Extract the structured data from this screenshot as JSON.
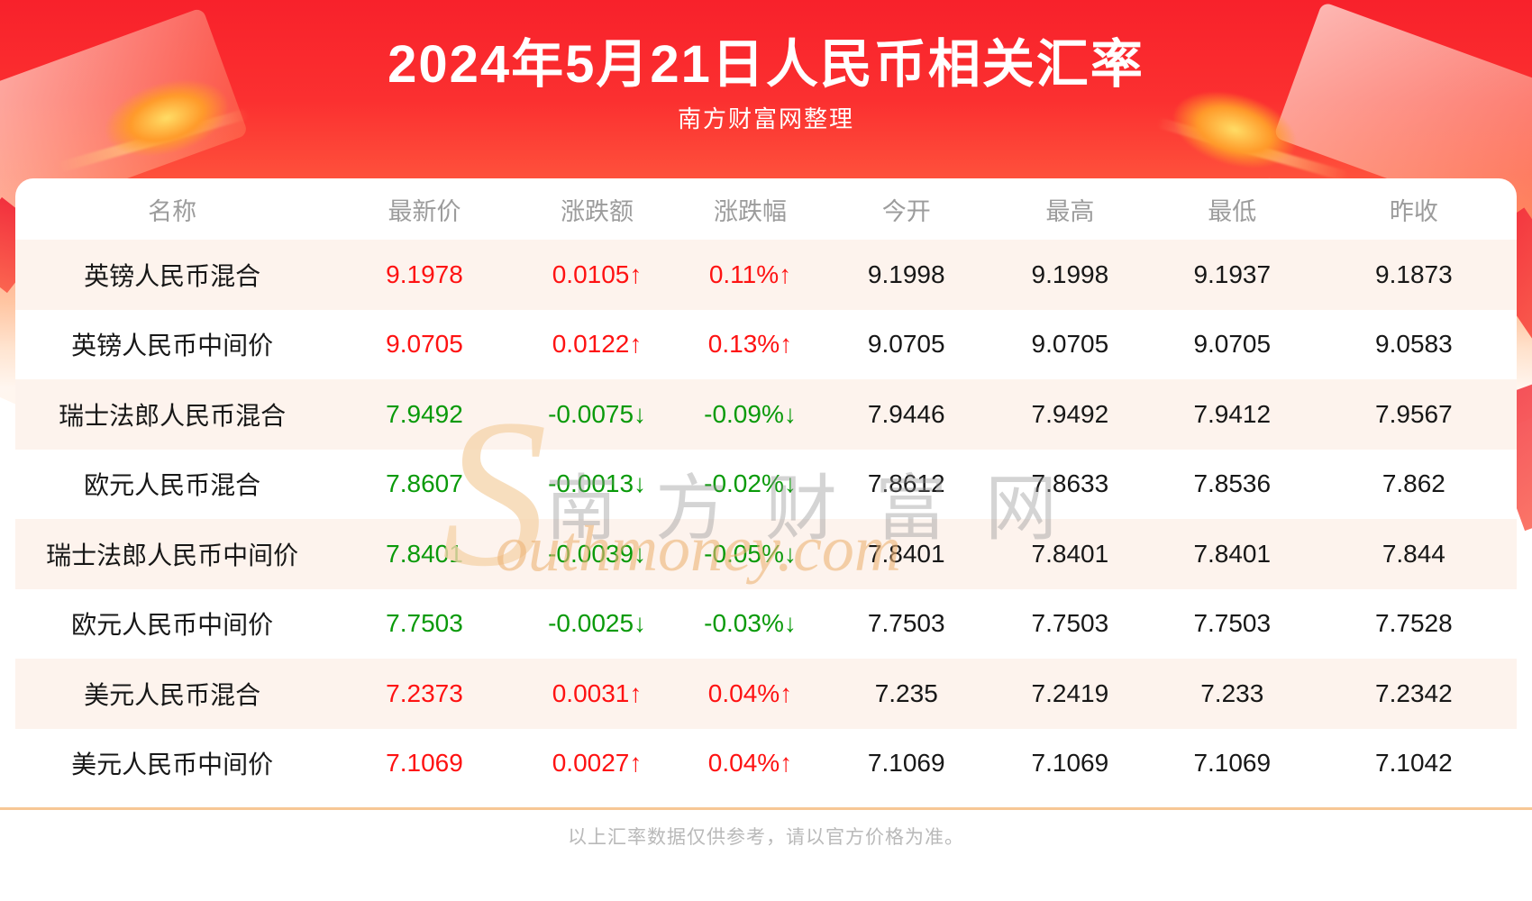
{
  "header": {
    "title": "2024年5月21日人民币相关汇率",
    "subtitle": "南方财富网整理"
  },
  "watermark": {
    "s_glyph": "S",
    "cn": "南方财富网",
    "en": "outhmoney.com"
  },
  "footer": {
    "note": "以上汇率数据仅供参考，请以官方价格为准。"
  },
  "colors": {
    "up": "#fe1212",
    "down": "#0a9a0a",
    "banner_red": "#f8212b",
    "row_alt": "#fdf3ed",
    "divider": "#f7c795",
    "header_text": "#9c9c9c",
    "footer_text": "#b9b9b9"
  },
  "chart_data": {
    "type": "table",
    "title": "2024年5月21日人民币相关汇率",
    "columns": [
      "名称",
      "最新价",
      "涨跌额",
      "涨跌幅",
      "今开",
      "最高",
      "最低",
      "昨收"
    ],
    "col_widths_pct": [
      20.9,
      12.7,
      10.3,
      10.1,
      10.7,
      11.1,
      10.5,
      13.7
    ],
    "rows": [
      {
        "name": "英镑人民币混合",
        "last": "9.1978",
        "change": "0.0105↑",
        "pct": "0.11%↑",
        "open": "9.1998",
        "high": "9.1998",
        "low": "9.1937",
        "prev": "9.1873",
        "trend": "up"
      },
      {
        "name": "英镑人民币中间价",
        "last": "9.0705",
        "change": "0.0122↑",
        "pct": "0.13%↑",
        "open": "9.0705",
        "high": "9.0705",
        "low": "9.0705",
        "prev": "9.0583",
        "trend": "up"
      },
      {
        "name": "瑞士法郎人民币混合",
        "last": "7.9492",
        "change": "-0.0075↓",
        "pct": "-0.09%↓",
        "open": "7.9446",
        "high": "7.9492",
        "low": "7.9412",
        "prev": "7.9567",
        "trend": "down"
      },
      {
        "name": "欧元人民币混合",
        "last": "7.8607",
        "change": "-0.0013↓",
        "pct": "-0.02%↓",
        "open": "7.8612",
        "high": "7.8633",
        "low": "7.8536",
        "prev": "7.862",
        "trend": "down"
      },
      {
        "name": "瑞士法郎人民币中间价",
        "last": "7.8401",
        "change": "-0.0039↓",
        "pct": "-0.05%↓",
        "open": "7.8401",
        "high": "7.8401",
        "low": "7.8401",
        "prev": "7.844",
        "trend": "down"
      },
      {
        "name": "欧元人民币中间价",
        "last": "7.7503",
        "change": "-0.0025↓",
        "pct": "-0.03%↓",
        "open": "7.7503",
        "high": "7.7503",
        "low": "7.7503",
        "prev": "7.7528",
        "trend": "down"
      },
      {
        "name": "美元人民币混合",
        "last": "7.2373",
        "change": "0.0031↑",
        "pct": "0.04%↑",
        "open": "7.235",
        "high": "7.2419",
        "low": "7.233",
        "prev": "7.2342",
        "trend": "up"
      },
      {
        "name": "美元人民币中间价",
        "last": "7.1069",
        "change": "0.0027↑",
        "pct": "0.04%↑",
        "open": "7.1069",
        "high": "7.1069",
        "low": "7.1069",
        "prev": "7.1042",
        "trend": "up"
      }
    ]
  }
}
